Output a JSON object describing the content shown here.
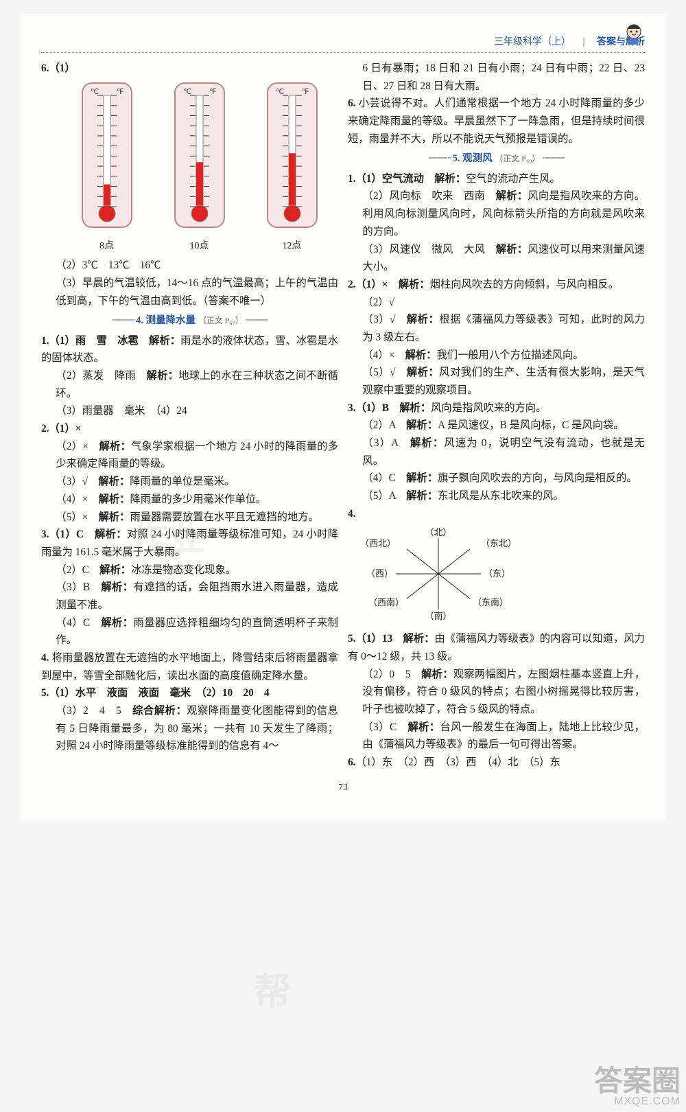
{
  "header": {
    "subject": "三年级科学（上）",
    "section": "答案与解析"
  },
  "thermometers": {
    "labels": [
      "8点",
      "10点",
      "12点"
    ],
    "fill_fractions": [
      0.2,
      0.4,
      0.48
    ],
    "scale_left_label": "℃",
    "scale_right_label": "℉",
    "bg": "#f7e7e7",
    "frame": "#b88",
    "tube_bg": "#ffffff",
    "mercury": "#d22",
    "tick": "#333"
  },
  "left": {
    "q6_1": "6.（1）",
    "q6_2": "（2）3℃　13℃　16℃",
    "q6_3": "（3）早晨的气温较低，14～16 点的气温最高；上午的气温由低到高，下午的气温由高到低。（答案不唯一）",
    "sec4_title": "4. 测量降水量",
    "sec4_ref": "（正文 P₆₇）",
    "s4_1_1": "1.（1）雨　雪　冰雹　",
    "s4_1_1e": "解析：雨是水的液体状态，雪、冰雹是水的固体状态。",
    "s4_1_2": "（2）蒸发　降雨　",
    "s4_1_2e": "解析：地球上的水在三种状态之间不断循环。",
    "s4_1_3": "（3）雨量器　毫米　（4）24",
    "s4_2_1": "2.（1）×",
    "s4_2_2": "（2）×　",
    "s4_2_2e": "解析：气象学家根据一个地方 24 小时的降雨量的多少来确定降雨量的等级。",
    "s4_2_3": "（3）√　",
    "s4_2_3e": "解析：降雨量的单位是毫米。",
    "s4_2_4": "（4）×　",
    "s4_2_4e": "解析：降雨量的多少用毫米作单位。",
    "s4_2_5": "（5）×　",
    "s4_2_5e": "解析：雨量器需要放置在水平且无遮挡的地方。",
    "s4_3_1": "3.（1）C　",
    "s4_3_1e": "解析：对照 24 小时降雨量等级标准可知，24 小时降雨量为 161.5 毫米属于大暴雨。",
    "s4_3_2": "（2）C　",
    "s4_3_2e": "解析：冰冻是物态变化现象。",
    "s4_3_3": "（3）B　",
    "s4_3_3e": "解析：有遮挡的话，会阻挡雨水进入雨量器，造成测量不准。",
    "s4_3_4": "（4）C　",
    "s4_3_4e": "解析：雨量器应选择粗细均匀的直筒透明杯子来制作。",
    "s4_4": "4. 将雨量器放置在无遮挡的水平地面上，降雪结束后将雨量器拿到屋中，等雪全部融化后，读出水面的高度值确定降水量。",
    "s4_5_1": "5.（1）水平　液面　液面　毫米　（2）10　20　4",
    "s4_5_3": "（3）2　4　5　",
    "s4_5_3e": "综合解析：观察降雨量变化图能得到的信息有 5 日降雨量最多，为 80 毫米；一共有 10 天发生了降雨；对照 24 小时降雨量等级标准能得到的信息有 4～"
  },
  "right": {
    "cont": "6 日有暴雨；18 日和 21 日有小雨；24 日有中雨；22 日、23 日、27 日和 28 日有大雨。",
    "s4_6": "6. 小芸说得不对。人们通常根据一个地方 24 小时降雨量的多少来确定降雨量的等级。早晨虽然下了一阵急雨，但是持续时间很短，雨量并不大，所以不能说天气预报是错误的。",
    "sec5_title": "5. 观测风",
    "sec5_ref": "（正文 P₆₉）",
    "s5_1_1": "1.（1）空气流动　",
    "s5_1_1e": "解析：空气的流动产生风。",
    "s5_1_2": "（2）风向标　吹来　西南　",
    "s5_1_2e": "解析：风向是指风吹来的方向。利用风向标测量风向时，风向标箭头所指的方向就是风吹来的方向。",
    "s5_1_3": "（3）风速仪　微风　大风　",
    "s5_1_3e": "解析：风速仪可以用来测量风速大小。",
    "s5_2_1": "2.（1）×　",
    "s5_2_1e": "解析：烟柱向风吹去的方向倾斜，与风向相反。",
    "s5_2_2": "（2）√",
    "s5_2_3": "（3）√　",
    "s5_2_3e": "解析：根据《蒲福风力等级表》可知，此时的风力为 3 级左右。",
    "s5_2_4": "（4）×　",
    "s5_2_4e": "解析：我们一般用八个方位描述风向。",
    "s5_2_5": "（5）√　",
    "s5_2_5e": "解析：风对我们的生产、生活有很大影响，是天气观察中重要的观察项目。",
    "s5_3_1": "3.（1）B　",
    "s5_3_1e": "解析：风向是指风吹来的方向。",
    "s5_3_2": "（2）A　",
    "s5_3_2e": "解析：A 是风速仪，B 是风向标，C 是风向袋。",
    "s5_3_3": "（3）A　",
    "s5_3_3e": "解析：风速为 0，说明空气没有流动，也就是无风。",
    "s5_3_4": "（4）C　",
    "s5_3_4e": "解析：旗子飘向风吹去的方向，与风向是相反的。",
    "s5_3_5": "（5）A　",
    "s5_3_5e": "解析：东北风是从东北吹来的风。",
    "s5_4": "4.",
    "compass": {
      "labels": {
        "n": "（北）",
        "ne": "（东北）",
        "e": "（东）",
        "se": "（东南）",
        "s": "（南）",
        "sw": "（西南）",
        "w": "（西）",
        "nw": "（西北）"
      },
      "line_color": "#222"
    },
    "s5_5_1": "5.（1）13　",
    "s5_5_1e": "解析：由《蒲福风力等级表》的内容可以知道，风力有 0～12 级，共 13 级。",
    "s5_5_2": "（2）0　5　",
    "s5_5_2e": "解析：观察两幅图片，左图烟柱基本竖直上升，没有偏移，符合 0 级风的特点；右图小树摇晃得比较厉害，叶子也被吹掉了，符合 5 级风的特点。",
    "s5_5_3": "（3）C　",
    "s5_5_3e": "解析：台风一般发生在海面上，陆地上比较少见，由《蒲福风力等级表》的最后一句可得出答案。",
    "s5_6": "6.（1）东　（2）西　（3）西　（4）北　（5）东"
  },
  "pagenum": "73",
  "watermarks": {
    "wm1": "作业",
    "wm2": "帮",
    "corner_big": "答案圈",
    "corner_small": "MXQE.COM"
  }
}
